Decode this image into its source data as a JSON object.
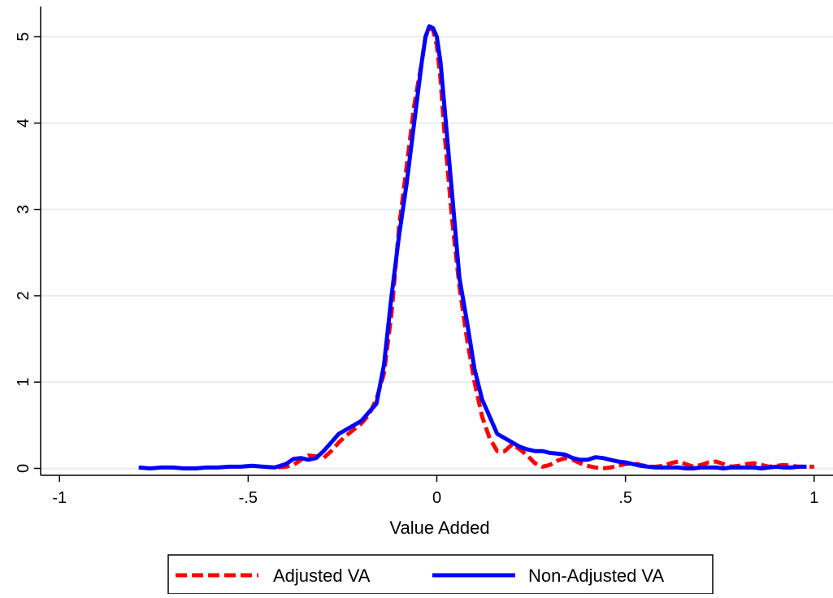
{
  "chart_data": {
    "type": "line",
    "title": "",
    "xlabel": "Value Added",
    "ylabel": "",
    "xlim": [
      -1.05,
      1.05
    ],
    "ylim": [
      -0.08,
      5.35
    ],
    "xticks": [
      -1,
      -0.5,
      0,
      0.5,
      1
    ],
    "xtick_labels": [
      "-1",
      "-.5",
      "0",
      ".5",
      "1"
    ],
    "yticks": [
      0,
      1,
      2,
      3,
      4,
      5
    ],
    "ytick_labels": [
      "0",
      "1",
      "2",
      "3",
      "4",
      "5"
    ],
    "grid": "horizontal",
    "legend": "bottom",
    "series": [
      {
        "name": "Adjusted VA",
        "color": "#ff0000",
        "style": "dashed",
        "x": [
          -0.42,
          -0.4,
          -0.38,
          -0.36,
          -0.34,
          -0.32,
          -0.3,
          -0.28,
          -0.26,
          -0.24,
          -0.22,
          -0.2,
          -0.18,
          -0.16,
          -0.14,
          -0.12,
          -0.1,
          -0.08,
          -0.06,
          -0.04,
          -0.03,
          -0.02,
          -0.01,
          0,
          0.01,
          0.02,
          0.04,
          0.06,
          0.08,
          0.1,
          0.12,
          0.14,
          0.16,
          0.18,
          0.2,
          0.22,
          0.24,
          0.26,
          0.28,
          0.3,
          0.32,
          0.34,
          0.36,
          0.38,
          0.4,
          0.42,
          0.44,
          0.46,
          0.48,
          0.5,
          0.52,
          0.54,
          0.56,
          0.58,
          0.6,
          0.62,
          0.64,
          0.66,
          0.68,
          0.7,
          0.72,
          0.74,
          0.76,
          0.78,
          0.8,
          0.82,
          0.84,
          0.86,
          0.88,
          0.9,
          0.92,
          0.94,
          0.96,
          0.98,
          1.0
        ],
        "y": [
          0.01,
          0.02,
          0.04,
          0.1,
          0.15,
          0.14,
          0.12,
          0.2,
          0.3,
          0.38,
          0.45,
          0.52,
          0.62,
          0.8,
          1.1,
          1.8,
          2.8,
          3.5,
          4.2,
          4.7,
          5.0,
          5.1,
          5.08,
          4.9,
          4.5,
          3.9,
          2.9,
          2.1,
          1.5,
          1.0,
          0.6,
          0.35,
          0.2,
          0.2,
          0.28,
          0.22,
          0.15,
          0.06,
          0.02,
          0.04,
          0.09,
          0.12,
          0.1,
          0.06,
          0.03,
          0.01,
          0.0,
          0.01,
          0.03,
          0.05,
          0.06,
          0.04,
          0.02,
          0.02,
          0.03,
          0.06,
          0.08,
          0.05,
          0.02,
          0.04,
          0.07,
          0.08,
          0.05,
          0.02,
          0.03,
          0.05,
          0.06,
          0.04,
          0.02,
          0.03,
          0.04,
          0.03,
          0.02,
          0.02,
          0.02
        ]
      },
      {
        "name": "Non-Adjusted VA",
        "color": "#0000ff",
        "style": "solid",
        "x": [
          -0.79,
          -0.76,
          -0.73,
          -0.7,
          -0.67,
          -0.64,
          -0.61,
          -0.58,
          -0.55,
          -0.52,
          -0.49,
          -0.46,
          -0.43,
          -0.4,
          -0.38,
          -0.36,
          -0.34,
          -0.32,
          -0.3,
          -0.28,
          -0.26,
          -0.24,
          -0.22,
          -0.2,
          -0.18,
          -0.16,
          -0.14,
          -0.12,
          -0.1,
          -0.08,
          -0.06,
          -0.04,
          -0.03,
          -0.02,
          -0.01,
          0,
          0.01,
          0.02,
          0.04,
          0.06,
          0.08,
          0.1,
          0.12,
          0.14,
          0.16,
          0.18,
          0.2,
          0.22,
          0.24,
          0.26,
          0.28,
          0.3,
          0.32,
          0.34,
          0.36,
          0.38,
          0.4,
          0.42,
          0.44,
          0.46,
          0.48,
          0.5,
          0.52,
          0.54,
          0.56,
          0.58,
          0.6,
          0.62,
          0.64,
          0.66,
          0.68,
          0.7,
          0.72,
          0.74,
          0.76,
          0.78,
          0.8,
          0.82,
          0.84,
          0.86,
          0.88,
          0.9,
          0.92,
          0.94,
          0.96,
          0.98
        ],
        "y": [
          0.01,
          0.0,
          0.01,
          0.01,
          0.0,
          0.0,
          0.01,
          0.01,
          0.02,
          0.02,
          0.03,
          0.02,
          0.01,
          0.05,
          0.11,
          0.12,
          0.1,
          0.12,
          0.2,
          0.3,
          0.4,
          0.45,
          0.5,
          0.55,
          0.65,
          0.75,
          1.2,
          2.0,
          2.7,
          3.3,
          4.0,
          4.7,
          5.0,
          5.12,
          5.1,
          5.0,
          4.7,
          4.2,
          3.2,
          2.2,
          1.7,
          1.15,
          0.8,
          0.6,
          0.4,
          0.35,
          0.3,
          0.25,
          0.22,
          0.2,
          0.2,
          0.18,
          0.17,
          0.16,
          0.12,
          0.1,
          0.1,
          0.13,
          0.12,
          0.1,
          0.08,
          0.07,
          0.05,
          0.03,
          0.02,
          0.01,
          0.01,
          0.01,
          0.01,
          0.0,
          0.0,
          0.01,
          0.01,
          0.01,
          0.0,
          0.01,
          0.01,
          0.01,
          0.01,
          0.0,
          0.01,
          0.02,
          0.01,
          0.01,
          0.02,
          0.02
        ]
      }
    ]
  }
}
